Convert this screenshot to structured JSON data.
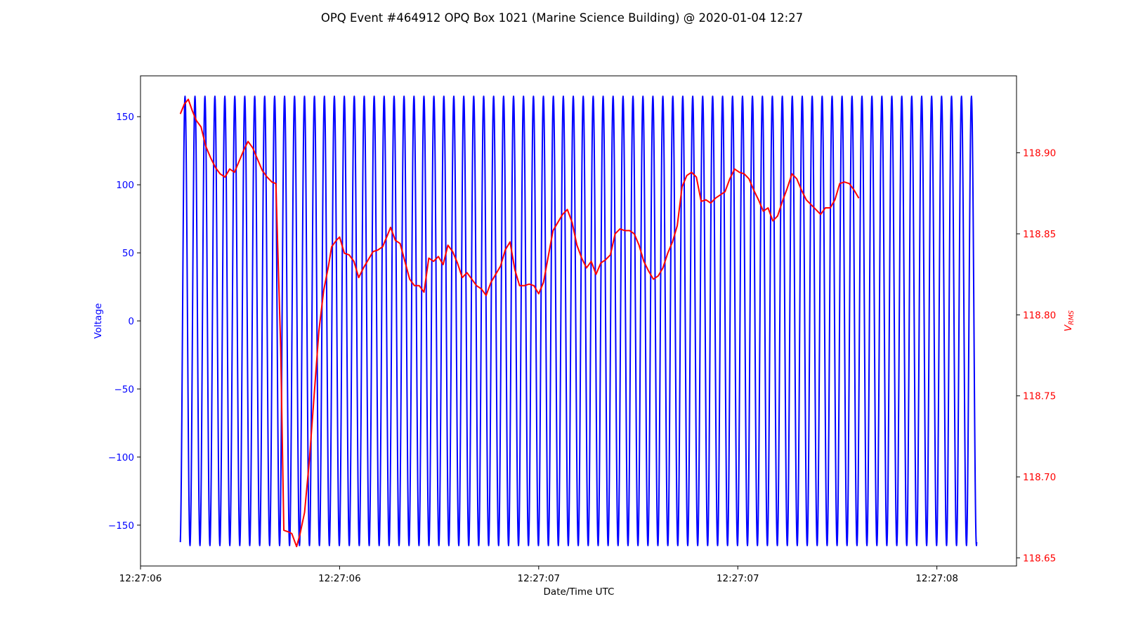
{
  "chart_data": {
    "type": "line",
    "title": "OPQ Event #464912 OPQ Box 1021 (Marine Science Building) @ 2020-01-04 12:27",
    "xlabel": "Date/Time UTC",
    "ylabel_left": "Voltage",
    "ylabel_right_main": "V",
    "ylabel_right_sub": "RMS",
    "x_tick_labels": [
      "12:27:06",
      "12:27:06",
      "12:27:07",
      "12:27:07",
      "12:27:08"
    ],
    "x_tick_values": [
      0.0,
      0.25,
      0.5,
      0.75,
      1.0
    ],
    "xlim": [
      0.0,
      1.1
    ],
    "left_axis": {
      "ylim": [
        -180,
        180
      ],
      "ticks": [
        -150,
        -100,
        -50,
        0,
        50,
        100,
        150
      ],
      "tick_labels": [
        "−150",
        "−100",
        "−50",
        "0",
        "50",
        "100",
        "150"
      ],
      "color": "#0000ff"
    },
    "right_axis": {
      "ylim": [
        118.645,
        118.9475
      ],
      "ticks": [
        118.65,
        118.7,
        118.75,
        118.8,
        118.85,
        118.9
      ],
      "tick_labels": [
        "118.65",
        "118.70",
        "118.75",
        "118.80",
        "118.85",
        "118.90"
      ],
      "color": "#ff0000"
    },
    "series": [
      {
        "axis": "left",
        "color": "#0000ff",
        "kind": "sine",
        "amplitude": 165,
        "cycles": 80,
        "start_phase_deg": -80,
        "x_start": 0.05,
        "x_end": 1.05
      },
      {
        "axis": "right",
        "color": "#ff0000",
        "points": [
          [
            0.05,
            118.924
          ],
          [
            0.055,
            118.93
          ],
          [
            0.06,
            118.933
          ],
          [
            0.065,
            118.926
          ],
          [
            0.07,
            118.92
          ],
          [
            0.076,
            118.916
          ],
          [
            0.082,
            118.904
          ],
          [
            0.088,
            118.897
          ],
          [
            0.094,
            118.891
          ],
          [
            0.1,
            118.887
          ],
          [
            0.106,
            118.885
          ],
          [
            0.112,
            118.89
          ],
          [
            0.118,
            118.888
          ],
          [
            0.124,
            118.895
          ],
          [
            0.13,
            118.902
          ],
          [
            0.135,
            118.907
          ],
          [
            0.141,
            118.903
          ],
          [
            0.147,
            118.896
          ],
          [
            0.153,
            118.889
          ],
          [
            0.159,
            118.885
          ],
          [
            0.165,
            118.882
          ],
          [
            0.17,
            118.881
          ],
          [
            0.176,
            118.78
          ],
          [
            0.18,
            118.667
          ],
          [
            0.186,
            118.666
          ],
          [
            0.19,
            118.665
          ],
          [
            0.196,
            118.657
          ],
          [
            0.2,
            118.664
          ],
          [
            0.206,
            118.678
          ],
          [
            0.212,
            118.71
          ],
          [
            0.218,
            118.75
          ],
          [
            0.224,
            118.79
          ],
          [
            0.23,
            118.815
          ],
          [
            0.236,
            118.83
          ],
          [
            0.24,
            118.842
          ],
          [
            0.246,
            118.846
          ],
          [
            0.25,
            118.848
          ],
          [
            0.256,
            118.838
          ],
          [
            0.262,
            118.837
          ],
          [
            0.268,
            118.833
          ],
          [
            0.274,
            118.823
          ],
          [
            0.28,
            118.829
          ],
          [
            0.286,
            118.834
          ],
          [
            0.292,
            118.839
          ],
          [
            0.298,
            118.84
          ],
          [
            0.304,
            118.842
          ],
          [
            0.31,
            118.849
          ],
          [
            0.314,
            118.854
          ],
          [
            0.32,
            118.846
          ],
          [
            0.326,
            118.844
          ],
          [
            0.332,
            118.833
          ],
          [
            0.338,
            118.822
          ],
          [
            0.344,
            118.818
          ],
          [
            0.35,
            118.818
          ],
          [
            0.356,
            118.814
          ],
          [
            0.362,
            118.835
          ],
          [
            0.368,
            118.833
          ],
          [
            0.374,
            118.836
          ],
          [
            0.38,
            118.831
          ],
          [
            0.386,
            118.843
          ],
          [
            0.392,
            118.839
          ],
          [
            0.398,
            118.832
          ],
          [
            0.404,
            118.823
          ],
          [
            0.41,
            118.826
          ],
          [
            0.416,
            118.822
          ],
          [
            0.422,
            118.818
          ],
          [
            0.428,
            118.816
          ],
          [
            0.434,
            118.812
          ],
          [
            0.44,
            118.82
          ],
          [
            0.446,
            118.825
          ],
          [
            0.452,
            118.83
          ],
          [
            0.458,
            118.84
          ],
          [
            0.464,
            118.845
          ],
          [
            0.47,
            118.828
          ],
          [
            0.476,
            118.818
          ],
          [
            0.482,
            118.818
          ],
          [
            0.488,
            118.819
          ],
          [
            0.494,
            118.818
          ],
          [
            0.5,
            118.813
          ],
          [
            0.506,
            118.82
          ],
          [
            0.512,
            118.836
          ],
          [
            0.518,
            118.852
          ],
          [
            0.524,
            118.857
          ],
          [
            0.53,
            118.862
          ],
          [
            0.536,
            118.865
          ],
          [
            0.542,
            118.857
          ],
          [
            0.548,
            118.843
          ],
          [
            0.554,
            118.835
          ],
          [
            0.56,
            118.829
          ],
          [
            0.566,
            118.833
          ],
          [
            0.572,
            118.825
          ],
          [
            0.578,
            118.832
          ],
          [
            0.584,
            118.834
          ],
          [
            0.59,
            118.837
          ],
          [
            0.596,
            118.85
          ],
          [
            0.602,
            118.853
          ],
          [
            0.608,
            118.852
          ],
          [
            0.614,
            118.852
          ],
          [
            0.62,
            118.85
          ],
          [
            0.626,
            118.843
          ],
          [
            0.632,
            118.833
          ],
          [
            0.638,
            118.827
          ],
          [
            0.644,
            118.822
          ],
          [
            0.65,
            118.824
          ],
          [
            0.656,
            118.829
          ],
          [
            0.662,
            118.838
          ],
          [
            0.668,
            118.845
          ],
          [
            0.674,
            118.855
          ],
          [
            0.68,
            118.879
          ],
          [
            0.686,
            118.886
          ],
          [
            0.692,
            118.888
          ],
          [
            0.698,
            118.885
          ],
          [
            0.704,
            118.87
          ],
          [
            0.71,
            118.871
          ],
          [
            0.716,
            118.869
          ],
          [
            0.722,
            118.872
          ],
          [
            0.728,
            118.874
          ],
          [
            0.734,
            118.876
          ],
          [
            0.74,
            118.884
          ],
          [
            0.746,
            118.89
          ],
          [
            0.752,
            118.888
          ],
          [
            0.758,
            118.887
          ],
          [
            0.764,
            118.884
          ],
          [
            0.77,
            118.877
          ],
          [
            0.776,
            118.871
          ],
          [
            0.782,
            118.864
          ],
          [
            0.788,
            118.866
          ],
          [
            0.794,
            118.858
          ],
          [
            0.8,
            118.861
          ],
          [
            0.806,
            118.87
          ],
          [
            0.812,
            118.878
          ],
          [
            0.818,
            118.887
          ],
          [
            0.824,
            118.884
          ],
          [
            0.83,
            118.877
          ],
          [
            0.836,
            118.871
          ],
          [
            0.842,
            118.868
          ],
          [
            0.848,
            118.865
          ],
          [
            0.854,
            118.862
          ],
          [
            0.86,
            118.866
          ],
          [
            0.866,
            118.866
          ],
          [
            0.872,
            118.871
          ],
          [
            0.878,
            118.881
          ],
          [
            0.884,
            118.882
          ],
          [
            0.89,
            118.881
          ],
          [
            0.896,
            118.877
          ],
          [
            0.902,
            118.872
          ]
        ]
      }
    ],
    "grid": false,
    "legend": "none"
  }
}
